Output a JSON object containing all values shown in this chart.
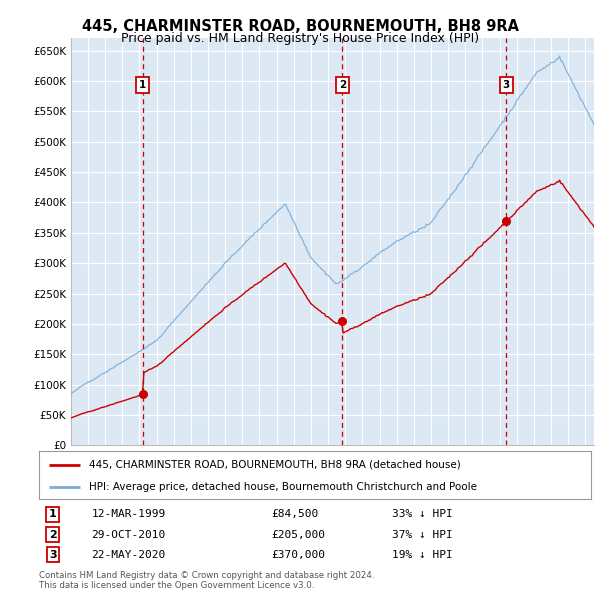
{
  "title": "445, CHARMINSTER ROAD, BOURNEMOUTH, BH8 9RA",
  "subtitle": "Price paid vs. HM Land Registry's House Price Index (HPI)",
  "title_fontsize": 10.5,
  "subtitle_fontsize": 9,
  "background_color": "#ffffff",
  "plot_bg_color": "#dce9f5",
  "grid_color": "#ffffff",
  "ylabel_vals": [
    0,
    50000,
    100000,
    150000,
    200000,
    250000,
    300000,
    350000,
    400000,
    450000,
    500000,
    550000,
    600000,
    650000
  ],
  "ylabel_labels": [
    "£0",
    "£50K",
    "£100K",
    "£150K",
    "£200K",
    "£250K",
    "£300K",
    "£350K",
    "£400K",
    "£450K",
    "£500K",
    "£550K",
    "£600K",
    "£650K"
  ],
  "xmin": 1995.0,
  "xmax": 2025.5,
  "ymin": 0,
  "ymax": 670000,
  "hpi_color": "#7aadda",
  "price_color": "#cc0000",
  "dashed_line_color": "#cc0000",
  "transactions": [
    {
      "num": 1,
      "date": "12-MAR-1999",
      "price": 84500,
      "x": 1999.19,
      "pct": "33% ↓ HPI"
    },
    {
      "num": 2,
      "date": "29-OCT-2010",
      "price": 205000,
      "x": 2010.83,
      "pct": "37% ↓ HPI"
    },
    {
      "num": 3,
      "date": "22-MAY-2020",
      "price": 370000,
      "x": 2020.39,
      "pct": "19% ↓ HPI"
    }
  ],
  "legend_line1": "445, CHARMINSTER ROAD, BOURNEMOUTH, BH8 9RA (detached house)",
  "legend_line2": "HPI: Average price, detached house, Bournemouth Christchurch and Poole",
  "footnote1": "Contains HM Land Registry data © Crown copyright and database right 2024.",
  "footnote2": "This data is licensed under the Open Government Licence v3.0."
}
